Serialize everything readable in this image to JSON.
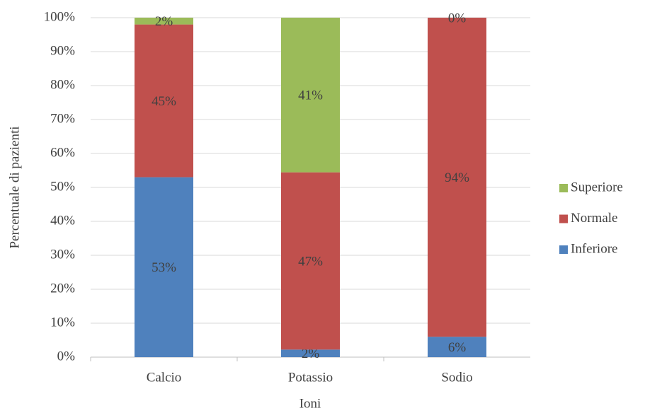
{
  "chart_data": {
    "type": "bar",
    "stacking": "percent",
    "y_label": "Percentuale di pazienti",
    "x_label": "Ioni",
    "categories": [
      "Calcio",
      "Potassio",
      "Sodio"
    ],
    "series": [
      {
        "name": "Inferiore",
        "color": "#4f81bd",
        "values": [
          53,
          2,
          6
        ],
        "value_labels": [
          "53%",
          "2%",
          "6%"
        ]
      },
      {
        "name": "Normale",
        "color": "#c0504d",
        "values": [
          45,
          47,
          94
        ],
        "value_labels": [
          "45%",
          "47%",
          "94%"
        ]
      },
      {
        "name": "Superiore",
        "color": "#9bbb59",
        "values": [
          2,
          41,
          0
        ],
        "value_labels": [
          "2%",
          "41%",
          "0%"
        ]
      }
    ],
    "ylim": [
      0,
      100
    ],
    "yticks": [
      {
        "value": 0,
        "label": "0%"
      },
      {
        "value": 10,
        "label": "10%"
      },
      {
        "value": 20,
        "label": "20%"
      },
      {
        "value": 30,
        "label": "30%"
      },
      {
        "value": 40,
        "label": "40%"
      },
      {
        "value": 50,
        "label": "50%"
      },
      {
        "value": 60,
        "label": "60%"
      },
      {
        "value": 70,
        "label": "70%"
      },
      {
        "value": 80,
        "label": "80%"
      },
      {
        "value": 90,
        "label": "90%"
      },
      {
        "value": 100,
        "label": "100%"
      }
    ],
    "grid": true,
    "legend": "right"
  }
}
